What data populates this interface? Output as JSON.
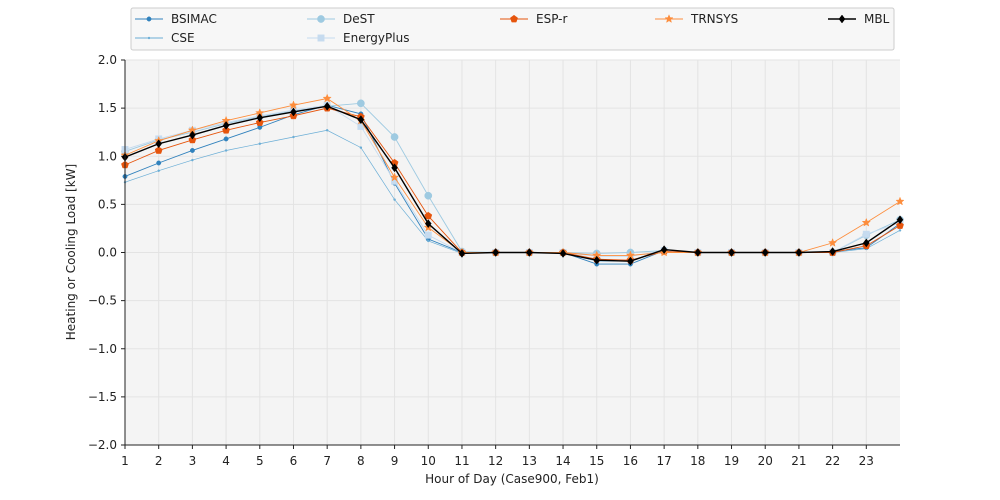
{
  "chart_data": {
    "type": "line",
    "title": "",
    "xlabel": "Hour of Day (Case900, Feb1)",
    "ylabel": "Heating or Cooling Load [kW]",
    "xlim": [
      1,
      24
    ],
    "ylim": [
      -2.0,
      2.0
    ],
    "x_ticks": [
      1,
      2,
      3,
      4,
      5,
      6,
      7,
      8,
      9,
      10,
      11,
      12,
      13,
      14,
      15,
      16,
      17,
      18,
      19,
      20,
      21,
      22,
      23
    ],
    "y_ticks": [
      "2.0",
      "1.5",
      "1.0",
      "0.5",
      "0.0",
      "−0.5",
      "−1.0",
      "−1.5",
      "−2.0"
    ],
    "y_tick_values": [
      2.0,
      1.5,
      1.0,
      0.5,
      0.0,
      -0.5,
      -1.0,
      -1.5,
      -2.0
    ],
    "grid": true,
    "legend_position": "top",
    "x": [
      1,
      2,
      3,
      4,
      5,
      6,
      7,
      8,
      9,
      10,
      11,
      12,
      13,
      14,
      15,
      16,
      17,
      18,
      19,
      20,
      21,
      22,
      23,
      24
    ],
    "series": [
      {
        "name": "BSIMAC",
        "color": "#3182bd",
        "marker": "dot",
        "values": [
          0.79,
          0.93,
          1.06,
          1.18,
          1.3,
          1.43,
          1.53,
          1.44,
          0.72,
          0.14,
          0.0,
          0.0,
          0.0,
          0.0,
          -0.12,
          -0.12,
          0.02,
          0.0,
          0.0,
          0.0,
          0.0,
          0.01,
          0.05,
          0.3
        ]
      },
      {
        "name": "CSE",
        "color": "#6baed6",
        "marker": "point",
        "values": [
          0.73,
          0.85,
          0.96,
          1.06,
          1.13,
          1.2,
          1.27,
          1.09,
          0.55,
          0.12,
          -0.01,
          0.0,
          0.0,
          0.0,
          -0.09,
          -0.09,
          0.02,
          0.0,
          0.0,
          0.0,
          0.0,
          0.0,
          0.04,
          0.23
        ]
      },
      {
        "name": "DeST",
        "color": "#9ecae1",
        "marker": "circle",
        "values": [
          1.05,
          1.17,
          1.25,
          1.34,
          1.41,
          1.47,
          1.52,
          1.55,
          1.2,
          0.59,
          0.01,
          0.0,
          0.0,
          0.0,
          -0.01,
          0.0,
          0.02,
          0.0,
          0.0,
          0.0,
          0.0,
          0.0,
          0.18,
          0.34
        ]
      },
      {
        "name": "EnergyPlus",
        "color": "#c6dbef",
        "marker": "square",
        "values": [
          1.07,
          1.18,
          1.27,
          1.35,
          1.42,
          1.48,
          1.53,
          1.31,
          0.74,
          0.18,
          0.0,
          0.0,
          0.0,
          0.0,
          -0.04,
          -0.04,
          0.02,
          0.0,
          0.0,
          0.0,
          0.0,
          0.0,
          0.19,
          0.31
        ]
      },
      {
        "name": "ESP-r",
        "color": "#e6550d",
        "marker": "pentagon",
        "values": [
          0.91,
          1.06,
          1.17,
          1.27,
          1.35,
          1.42,
          1.5,
          1.41,
          0.93,
          0.38,
          0.0,
          0.0,
          0.0,
          0.0,
          -0.07,
          -0.08,
          0.01,
          0.0,
          0.0,
          0.0,
          0.0,
          0.0,
          0.07,
          0.28
        ]
      },
      {
        "name": "TRNSYS",
        "color": "#fd8d3c",
        "marker": "star",
        "values": [
          1.01,
          1.16,
          1.27,
          1.37,
          1.45,
          1.53,
          1.6,
          1.37,
          0.78,
          0.26,
          0.0,
          0.0,
          0.0,
          0.0,
          -0.03,
          -0.03,
          0.0,
          0.0,
          0.0,
          0.0,
          0.0,
          0.1,
          0.31,
          0.53
        ]
      },
      {
        "name": "MBL",
        "color": "#000000",
        "marker": "diamond",
        "values": [
          0.99,
          1.13,
          1.22,
          1.32,
          1.4,
          1.46,
          1.52,
          1.38,
          0.88,
          0.3,
          -0.01,
          0.0,
          0.0,
          -0.01,
          -0.08,
          -0.09,
          0.03,
          0.0,
          0.0,
          0.0,
          0.0,
          0.01,
          0.1,
          0.34
        ]
      }
    ]
  }
}
